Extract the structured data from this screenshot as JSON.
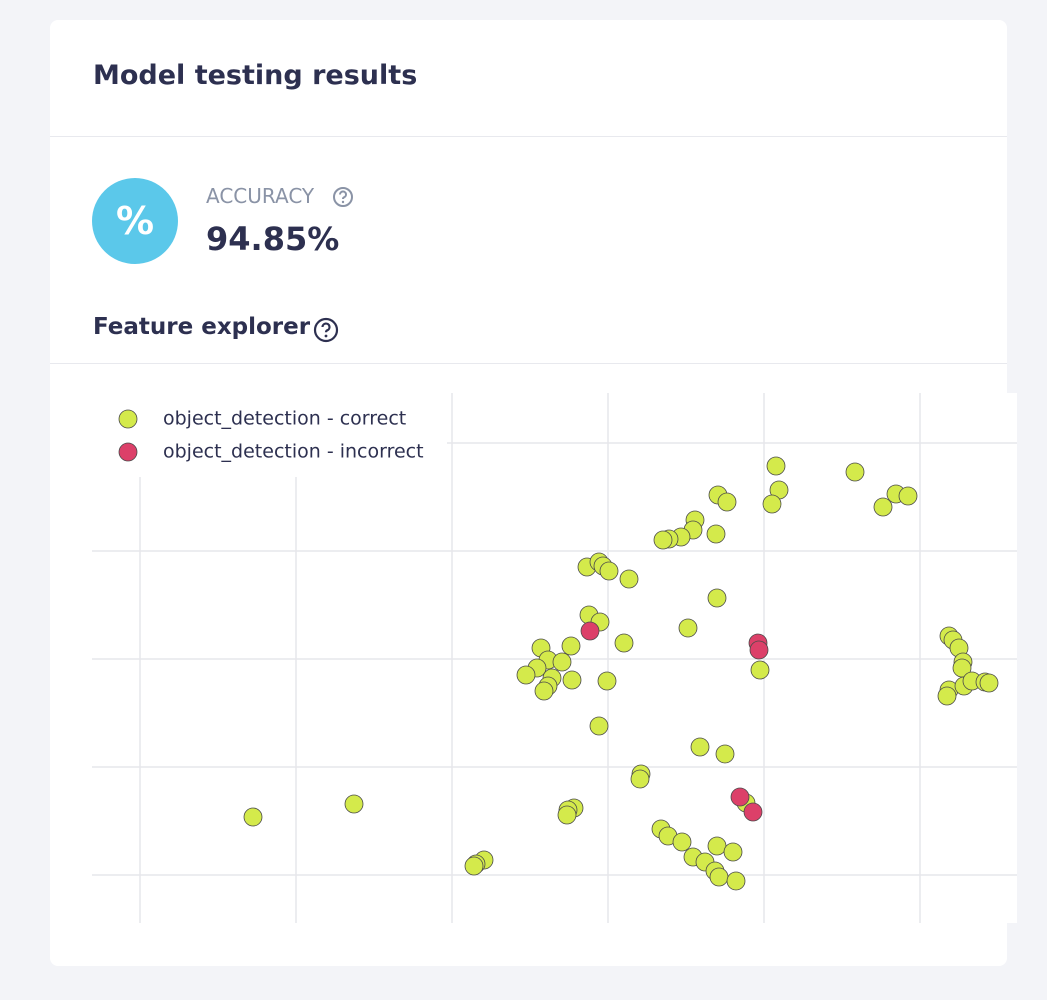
{
  "header": {
    "title": "Model testing results"
  },
  "metric": {
    "icon": "%",
    "label": "ACCURACY",
    "value": "94.85%"
  },
  "section": {
    "title": "Feature explorer"
  },
  "chart_data": {
    "type": "scatter",
    "xlim": [
      0,
      925
    ],
    "ylim": [
      0,
      530
    ],
    "series": [
      {
        "name": "object_detection - correct",
        "color": "#d4ea4b",
        "x": [
          684,
          763,
          687,
          680,
          626,
          635,
          791,
          804,
          816,
          603,
          601,
          589,
          577,
          571,
          624,
          495,
          507,
          511,
          517,
          537,
          625,
          497,
          508,
          596,
          532,
          857,
          861,
          867,
          871,
          870,
          857,
          855,
          872,
          880,
          893,
          897,
          449,
          479,
          456,
          470,
          445,
          434,
          460,
          456,
          452,
          480,
          515,
          668,
          507,
          608,
          633,
          549,
          548,
          482,
          476,
          475,
          654,
          161,
          262,
          569,
          576,
          590,
          625,
          641,
          601,
          613,
          623,
          627,
          644,
          392,
          384,
          382
        ],
        "y": [
          457,
          451,
          433,
          419,
          428,
          421,
          416,
          429,
          427,
          403,
          393,
          386,
          384,
          383,
          389,
          356,
          361,
          357,
          352,
          344,
          325,
          308,
          301,
          295,
          280,
          287,
          283,
          275,
          261,
          255,
          233,
          227,
          237,
          242,
          241,
          240,
          275,
          277,
          263,
          261,
          255,
          248,
          245,
          237,
          232,
          243,
          242,
          253,
          197,
          176,
          169,
          149,
          144,
          115,
          113,
          108,
          120,
          106,
          119,
          94,
          87,
          81,
          77,
          71,
          66,
          61,
          52,
          46,
          42,
          63,
          59,
          57
        ]
      },
      {
        "name": "object_detection - incorrect",
        "color": "#dc4069",
        "x": [
          498,
          666,
          667,
          648,
          661
        ],
        "y": [
          292,
          280,
          273,
          126,
          111
        ]
      }
    ]
  }
}
